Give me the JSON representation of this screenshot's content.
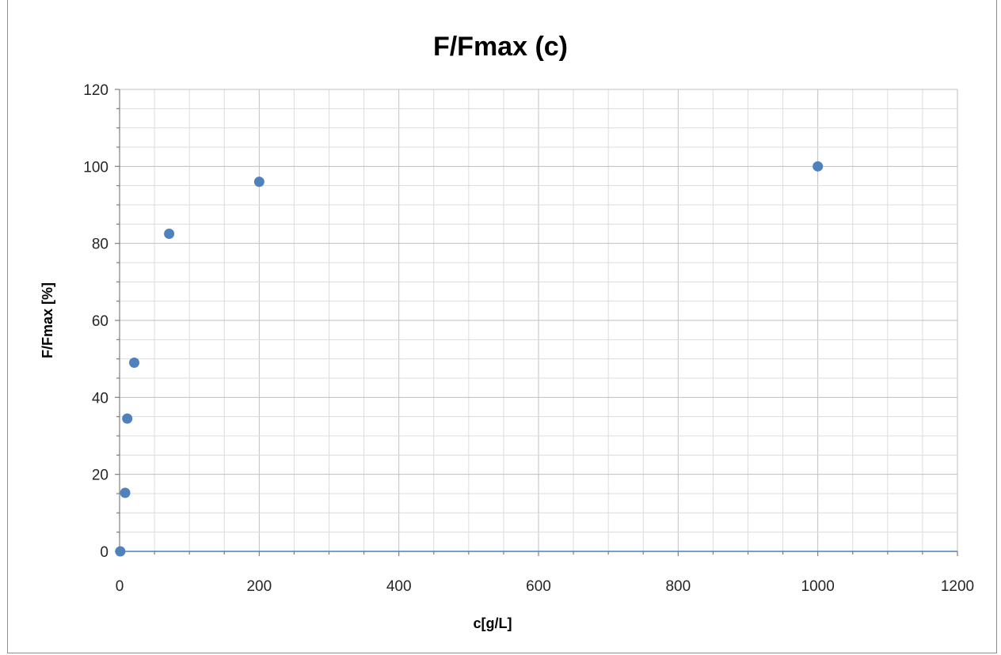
{
  "chart_data": {
    "type": "scatter",
    "title": "F/Fmax (c)",
    "xlabel": "c[g/L]",
    "ylabel": "F/Fmax [%]",
    "xlim": [
      0,
      1200
    ],
    "ylim": [
      0,
      120
    ],
    "x_ticks": [
      0,
      200,
      400,
      600,
      800,
      1000,
      1200
    ],
    "y_ticks": [
      0,
      20,
      40,
      60,
      80,
      100,
      120
    ],
    "x_minor_step": 50,
    "y_minor_step": 5,
    "grid": true,
    "legend": "none",
    "marker_color": "#4f81bd",
    "series": [
      {
        "points": [
          {
            "x": 1,
            "y": 0
          },
          {
            "x": 8,
            "y": 15.2
          },
          {
            "x": 11,
            "y": 34.5
          },
          {
            "x": 21,
            "y": 49
          },
          {
            "x": 71,
            "y": 82.5
          },
          {
            "x": 200,
            "y": 96
          },
          {
            "x": 1000,
            "y": 100
          }
        ]
      }
    ]
  }
}
